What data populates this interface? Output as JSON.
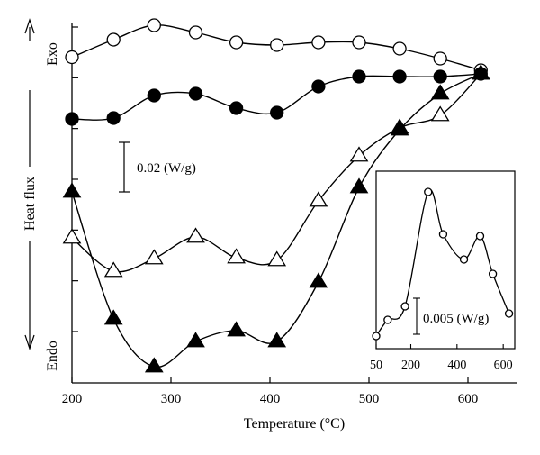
{
  "chart_data": {
    "type": "line",
    "xlabel": "Temperature (°C)",
    "ylabel": "Heat flux",
    "y_direction_labels": {
      "top": "Exo",
      "bottom": "Endo"
    },
    "scale_bar_label": "0.02 (W/g)",
    "xlim": [
      200,
      650
    ],
    "xticks": [
      200,
      300,
      400,
      500,
      600
    ],
    "y_tick_count": 7,
    "series": [
      {
        "marker": "open-circle",
        "x": [
          200,
          242,
          283,
          325,
          366,
          407,
          449,
          490,
          531,
          572,
          613
        ],
        "y": [
          63.5,
          44,
          28,
          36,
          47,
          50,
          47,
          47,
          54,
          65,
          78
        ]
      },
      {
        "marker": "filled-circle",
        "x": [
          200,
          242,
          283,
          325,
          366,
          407,
          449,
          490,
          531,
          572,
          613
        ],
        "y": [
          132,
          131,
          106,
          104,
          120,
          125,
          96,
          85,
          85,
          85,
          82
        ]
      },
      {
        "marker": "open-triangle",
        "x": [
          200,
          242,
          283,
          325,
          366,
          407,
          449,
          490,
          531,
          572,
          613
        ],
        "y": [
          264,
          301,
          287,
          263,
          286,
          289,
          223,
          173,
          142,
          128,
          82
        ]
      },
      {
        "marker": "filled-triangle",
        "x": [
          200,
          242,
          283,
          325,
          366,
          407,
          449,
          490,
          531,
          572,
          613
        ],
        "y": [
          213,
          354,
          407,
          379,
          367,
          379,
          313,
          208,
          144,
          104,
          82
        ]
      }
    ],
    "inset": {
      "marker": "open-circle",
      "scale_bar_label": "0.005 (W/g)",
      "xlim": [
        50,
        650
      ],
      "xticks": [
        50,
        200,
        400,
        600
      ],
      "x": [
        50,
        100,
        175,
        275,
        340,
        430,
        500,
        555,
        625
      ],
      "y": [
        373,
        355,
        340,
        213,
        260,
        288,
        262,
        304,
        348
      ]
    },
    "colors": {
      "line": "#000000",
      "fill": "#000000",
      "open_fill": "#ffffff"
    }
  }
}
